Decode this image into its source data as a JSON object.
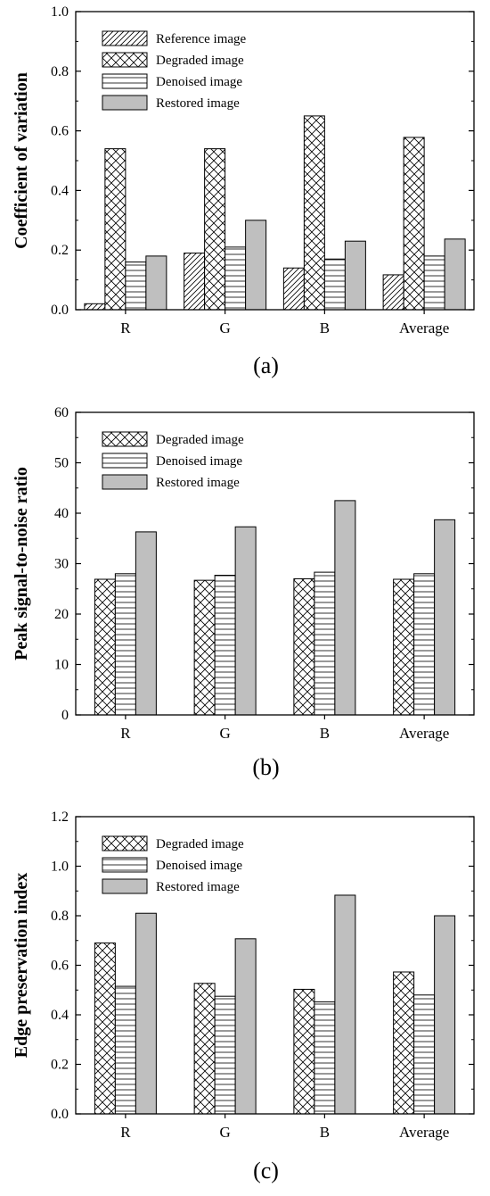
{
  "figure": {
    "charts": [
      {
        "panel": "(a)",
        "type": "bar",
        "categories": [
          "R",
          "G",
          "B",
          "Average"
        ],
        "ylabel": "Coefficient of variation",
        "ylim": [
          0,
          1.0
        ],
        "yticks": [
          0.0,
          0.2,
          0.4,
          0.6,
          0.8,
          1.0
        ],
        "ytick_labels": [
          "0.0",
          "0.2",
          "0.4",
          "0.6",
          "0.8",
          "1.0"
        ],
        "legend_position": "top-left",
        "series": [
          {
            "name": "Reference image",
            "pattern": "diagonal",
            "values": [
              0.02,
              0.19,
              0.14,
              0.117
            ]
          },
          {
            "name": "Degraded image",
            "pattern": "crosshatch",
            "values": [
              0.54,
              0.54,
              0.65,
              0.578
            ]
          },
          {
            "name": "Denoised image",
            "pattern": "horizontal",
            "values": [
              0.16,
              0.21,
              0.17,
              0.18
            ]
          },
          {
            "name": "Restored image",
            "pattern": "gray",
            "values": [
              0.18,
              0.3,
              0.23,
              0.237
            ]
          }
        ]
      },
      {
        "panel": "(b)",
        "type": "bar",
        "categories": [
          "R",
          "G",
          "B",
          "Average"
        ],
        "ylabel": "Peak signal-to-noise ratio",
        "ylim": [
          0,
          60
        ],
        "yticks": [
          0,
          10,
          20,
          30,
          40,
          50,
          60
        ],
        "ytick_labels": [
          "0",
          "10",
          "20",
          "30",
          "40",
          "50",
          "60"
        ],
        "legend_position": "top-left",
        "series": [
          {
            "name": "Degraded image",
            "pattern": "crosshatch",
            "values": [
              26.9,
              26.7,
              27.0,
              26.9
            ]
          },
          {
            "name": "Denoised image",
            "pattern": "horizontal",
            "values": [
              28.0,
              27.7,
              28.3,
              28.0
            ]
          },
          {
            "name": "Restored image",
            "pattern": "gray",
            "values": [
              36.3,
              37.3,
              42.5,
              38.7
            ]
          }
        ]
      },
      {
        "panel": "(c)",
        "type": "bar",
        "categories": [
          "R",
          "G",
          "B",
          "Average"
        ],
        "ylabel": "Edge preservation index",
        "ylim": [
          0,
          1.2
        ],
        "yticks": [
          0.0,
          0.2,
          0.4,
          0.6,
          0.8,
          1.0,
          1.2
        ],
        "ytick_labels": [
          "0.0",
          "0.2",
          "0.4",
          "0.6",
          "0.8",
          "1.0",
          "1.2"
        ],
        "legend_position": "top-left",
        "series": [
          {
            "name": "Degraded image",
            "pattern": "crosshatch",
            "values": [
              0.69,
              0.527,
              0.503,
              0.573
            ]
          },
          {
            "name": "Denoised image",
            "pattern": "horizontal",
            "values": [
              0.515,
              0.475,
              0.452,
              0.48
            ]
          },
          {
            "name": "Restored image",
            "pattern": "gray",
            "values": [
              0.81,
              0.707,
              0.883,
              0.8
            ]
          }
        ]
      }
    ]
  },
  "colors": {
    "restored_fill": "#bfbfbf",
    "stroke": "#000000",
    "background": "#ffffff"
  }
}
